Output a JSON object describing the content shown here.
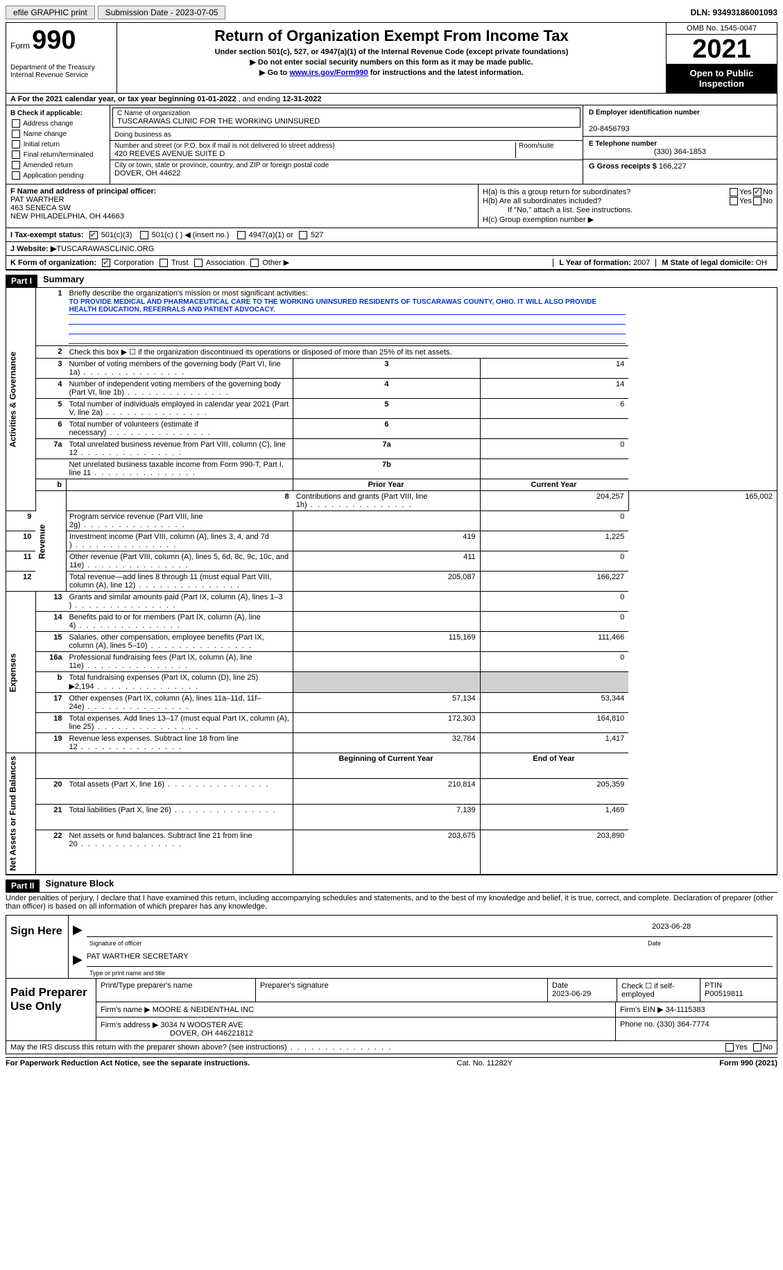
{
  "top": {
    "efile": "efile GRAPHIC print",
    "submission": "Submission Date - 2023-07-05",
    "dln": "DLN: 93493186001093"
  },
  "header": {
    "form_word": "Form",
    "form_num": "990",
    "dept": "Department of the Treasury",
    "irs": "Internal Revenue Service",
    "title": "Return of Organization Exempt From Income Tax",
    "sub": "Under section 501(c), 527, or 4947(a)(1) of the Internal Revenue Code (except private foundations)",
    "line1": "▶ Do not enter social security numbers on this form as it may be made public.",
    "line2_pre": "▶ Go to ",
    "line2_link": "www.irs.gov/Form990",
    "line2_post": " for instructions and the latest information.",
    "omb": "OMB No. 1545-0047",
    "year": "2021",
    "open": "Open to Public Inspection"
  },
  "row_a": {
    "label": "A For the 2021 calendar year, or tax year beginning ",
    "begin": "01-01-2022",
    "mid": " , and ending ",
    "end": "12-31-2022"
  },
  "col_b": {
    "title": "B Check if applicable:",
    "items": [
      "Address change",
      "Name change",
      "Initial return",
      "Final return/terminated",
      "Amended return",
      "Application pending"
    ]
  },
  "col_c": {
    "name_lbl": "C Name of organization",
    "name": "TUSCARAWAS CLINIC FOR THE WORKING UNINSURED",
    "dba_lbl": "Doing business as",
    "addr_lbl": "Number and street (or P.O. box if mail is not delivered to street address)",
    "addr": "420 REEVES AVENUE SUITE D",
    "room_lbl": "Room/suite",
    "city_lbl": "City or town, state or province, country, and ZIP or foreign postal code",
    "city": "DOVER, OH  44622"
  },
  "col_de": {
    "d_lbl": "D Employer identification number",
    "d_val": "20-8456793",
    "e_lbl": "E Telephone number",
    "e_val": "(330) 364-1853",
    "g_lbl": "G Gross receipts $ ",
    "g_val": "166,227"
  },
  "col_f": {
    "lbl": "F Name and address of principal officer:",
    "name": "PAT WARTHER",
    "addr1": "463 SENECA SW",
    "addr2": "NEW PHILADELPHIA, OH  44663"
  },
  "col_h": {
    "ha": "H(a)  Is this a group return for subordinates?",
    "hb": "H(b)  Are all subordinates included?",
    "hb_note": "If \"No,\" attach a list. See instructions.",
    "hc": "H(c)  Group exemption number ▶",
    "yes": "Yes",
    "no": "No"
  },
  "line_i": {
    "lbl": "I   Tax-exempt status:",
    "opts": [
      "501(c)(3)",
      "501(c) (  ) ◀ (insert no.)",
      "4947(a)(1) or",
      "527"
    ]
  },
  "line_j": {
    "lbl": "J   Website: ▶",
    "val": "  TUSCARAWASCLINIC.ORG"
  },
  "line_k": {
    "lbl": "K Form of organization:",
    "opts": [
      "Corporation",
      "Trust",
      "Association",
      "Other ▶"
    ],
    "l_lbl": "L Year of formation: ",
    "l_val": "2007",
    "m_lbl": "M State of legal domicile: ",
    "m_val": "OH"
  },
  "part1": {
    "num": "Part I",
    "title": "Summary",
    "side1": "Activities & Governance",
    "side2": "Revenue",
    "side3": "Expenses",
    "side4": "Net Assets or Fund Balances",
    "q1": "Briefly describe the organization's mission or most significant activities:",
    "mission": "TO PROVIDE MEDICAL AND PHARMACEUTICAL CARE TO THE WORKING UNINSURED RESIDENTS OF TUSCARAWAS COUNTY, OHIO. IT WILL ALSO PROVIDE HEALTH EDUCATION, REFERRALS AND PATIENT ADVOCACY.",
    "q2": "Check this box ▶ ☐  if the organization discontinued its operations or disposed of more than 25% of its net assets.",
    "rows_ag": [
      {
        "n": "3",
        "t": "Number of voting members of the governing body (Part VI, line 1a)",
        "b": "3",
        "v": "14"
      },
      {
        "n": "4",
        "t": "Number of independent voting members of the governing body (Part VI, line 1b)",
        "b": "4",
        "v": "14"
      },
      {
        "n": "5",
        "t": "Total number of individuals employed in calendar year 2021 (Part V, line 2a)",
        "b": "5",
        "v": "6"
      },
      {
        "n": "6",
        "t": "Total number of volunteers (estimate if necessary)",
        "b": "6",
        "v": ""
      },
      {
        "n": "7a",
        "t": "Total unrelated business revenue from Part VIII, column (C), line 12",
        "b": "7a",
        "v": "0"
      },
      {
        "n": "",
        "t": "Net unrelated business taxable income from Form 990-T, Part I, line 11",
        "b": "7b",
        "v": ""
      }
    ],
    "col_hdr_prior": "Prior Year",
    "col_hdr_curr": "Current Year",
    "rows_rev": [
      {
        "n": "8",
        "t": "Contributions and grants (Part VIII, line 1h)",
        "p": "204,257",
        "c": "165,002"
      },
      {
        "n": "9",
        "t": "Program service revenue (Part VIII, line 2g)",
        "p": "",
        "c": "0"
      },
      {
        "n": "10",
        "t": "Investment income (Part VIII, column (A), lines 3, 4, and 7d )",
        "p": "419",
        "c": "1,225"
      },
      {
        "n": "11",
        "t": "Other revenue (Part VIII, column (A), lines 5, 6d, 8c, 9c, 10c, and 11e)",
        "p": "411",
        "c": "0"
      },
      {
        "n": "12",
        "t": "Total revenue—add lines 8 through 11 (must equal Part VIII, column (A), line 12)",
        "p": "205,087",
        "c": "166,227"
      }
    ],
    "rows_exp": [
      {
        "n": "13",
        "t": "Grants and similar amounts paid (Part IX, column (A), lines 1–3 )",
        "p": "",
        "c": "0"
      },
      {
        "n": "14",
        "t": "Benefits paid to or for members (Part IX, column (A), line 4)",
        "p": "",
        "c": "0"
      },
      {
        "n": "15",
        "t": "Salaries, other compensation, employee benefits (Part IX, column (A), lines 5–10)",
        "p": "115,169",
        "c": "111,466"
      },
      {
        "n": "16a",
        "t": "Professional fundraising fees (Part IX, column (A), line 11e)",
        "p": "",
        "c": "0"
      },
      {
        "n": "b",
        "t": "Total fundraising expenses (Part IX, column (D), line 25) ▶2,194",
        "p": "sh",
        "c": "sh"
      },
      {
        "n": "17",
        "t": "Other expenses (Part IX, column (A), lines 11a–11d, 11f–24e)",
        "p": "57,134",
        "c": "53,344"
      },
      {
        "n": "18",
        "t": "Total expenses. Add lines 13–17 (must equal Part IX, column (A), line 25)",
        "p": "172,303",
        "c": "164,810"
      },
      {
        "n": "19",
        "t": "Revenue less expenses. Subtract line 18 from line 12",
        "p": "32,784",
        "c": "1,417"
      }
    ],
    "col_hdr_beg": "Beginning of Current Year",
    "col_hdr_end": "End of Year",
    "rows_na": [
      {
        "n": "20",
        "t": "Total assets (Part X, line 16)",
        "p": "210,814",
        "c": "205,359"
      },
      {
        "n": "21",
        "t": "Total liabilities (Part X, line 26)",
        "p": "7,139",
        "c": "1,469"
      },
      {
        "n": "22",
        "t": "Net assets or fund balances. Subtract line 21 from line 20",
        "p": "203,675",
        "c": "203,890"
      }
    ]
  },
  "part2": {
    "num": "Part II",
    "title": "Signature Block",
    "decl": "Under penalties of perjury, I declare that I have examined this return, including accompanying schedules and statements, and to the best of my knowledge and belief, it is true, correct, and complete. Declaration of preparer (other than officer) is based on all information of which preparer has any knowledge.",
    "sign_here": "Sign Here",
    "sig_lbl": "Signature of officer",
    "sig_date": "2023-06-28",
    "date_lbl": "Date",
    "name_val": "PAT WARTHER  SECRETARY",
    "name_lbl": "Type or print name and title",
    "paid": "Paid Preparer Use Only",
    "pp_name_lbl": "Print/Type preparer's name",
    "pp_sig_lbl": "Preparer's signature",
    "pp_date_lbl": "Date",
    "pp_date": "2023-06-29",
    "pp_self": "Check ☐ if self-employed",
    "pp_ptin_lbl": "PTIN",
    "pp_ptin": "P00519811",
    "firm_name_lbl": "Firm's name    ▶ ",
    "firm_name": "MOORE & NEIDENTHAL INC",
    "firm_ein_lbl": "Firm's EIN ▶ ",
    "firm_ein": "34-1115383",
    "firm_addr_lbl": "Firm's address ▶ ",
    "firm_addr1": "3034 N WOOSTER AVE",
    "firm_addr2": "DOVER, OH  446221812",
    "firm_phone_lbl": "Phone no. ",
    "firm_phone": "(330) 364-7774",
    "discuss": "May the IRS discuss this return with the preparer shown above? (see instructions)"
  },
  "footer": {
    "left": "For Paperwork Reduction Act Notice, see the separate instructions.",
    "mid": "Cat. No. 11282Y",
    "right": "Form 990 (2021)"
  }
}
